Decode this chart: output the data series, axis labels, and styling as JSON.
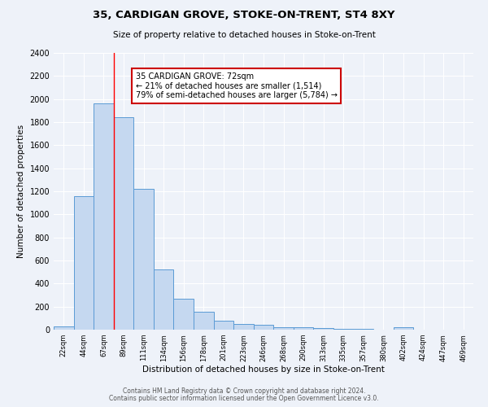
{
  "title1": "35, CARDIGAN GROVE, STOKE-ON-TRENT, ST4 8XY",
  "title2": "Size of property relative to detached houses in Stoke-on-Trent",
  "xlabel": "Distribution of detached houses by size in Stoke-on-Trent",
  "ylabel": "Number of detached properties",
  "footer1": "Contains HM Land Registry data © Crown copyright and database right 2024.",
  "footer2": "Contains public sector information licensed under the Open Government Licence v3.0.",
  "annotation_title": "35 CARDIGAN GROVE: 72sqm",
  "annotation_line2": "← 21% of detached houses are smaller (1,514)",
  "annotation_line3": "79% of semi-detached houses are larger (5,784) →",
  "bar_labels": [
    "22sqm",
    "44sqm",
    "67sqm",
    "89sqm",
    "111sqm",
    "134sqm",
    "156sqm",
    "178sqm",
    "201sqm",
    "223sqm",
    "246sqm",
    "268sqm",
    "290sqm",
    "313sqm",
    "335sqm",
    "357sqm",
    "380sqm",
    "402sqm",
    "424sqm",
    "447sqm",
    "469sqm"
  ],
  "bar_values": [
    25,
    1160,
    1960,
    1840,
    1220,
    520,
    265,
    155,
    80,
    50,
    40,
    22,
    18,
    12,
    8,
    5,
    3,
    20,
    3,
    3,
    3
  ],
  "bar_color": "#c5d8f0",
  "bar_edge_color": "#5b9bd5",
  "red_line_index": 2,
  "ylim": [
    0,
    2400
  ],
  "yticks": [
    0,
    200,
    400,
    600,
    800,
    1000,
    1200,
    1400,
    1600,
    1800,
    2000,
    2200,
    2400
  ],
  "bg_color": "#eef2f9",
  "grid_color": "#ffffff",
  "annotation_box_facecolor": "#ffffff",
  "annotation_box_edgecolor": "#cc0000"
}
